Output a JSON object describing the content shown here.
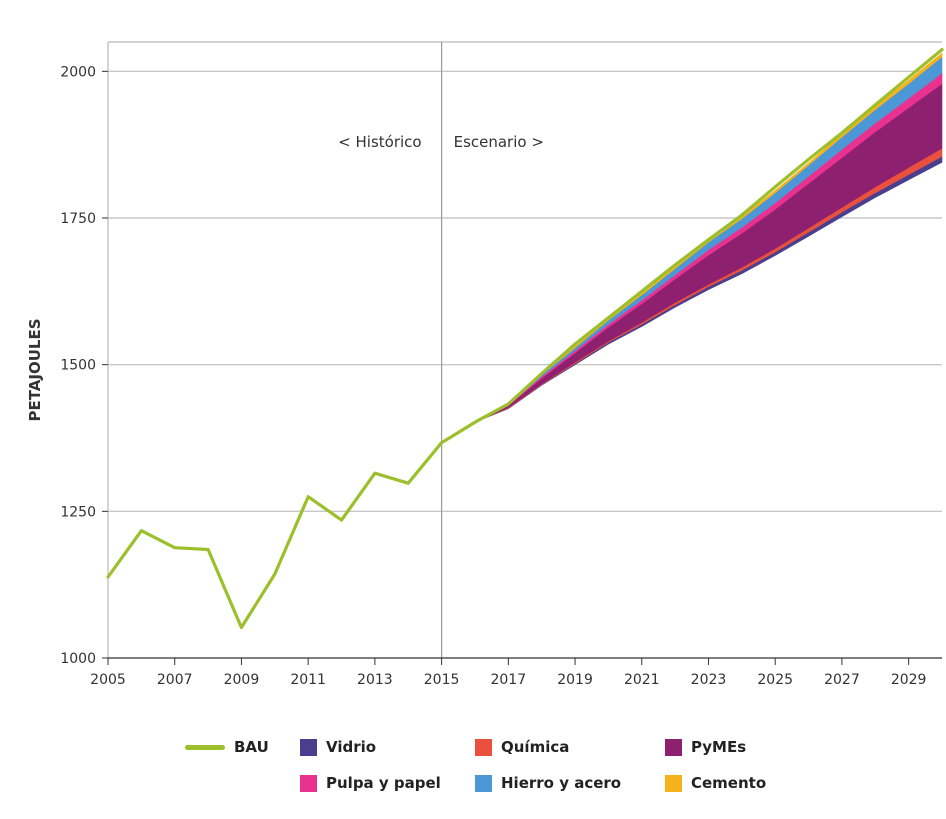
{
  "chart_data": {
    "type": "area",
    "ylabel": "PETAJOULES",
    "ylim": [
      1000,
      2050
    ],
    "xlim": [
      2005,
      2030
    ],
    "y_ticks": [
      "1000",
      "1250",
      "1500",
      "1750",
      "2000"
    ],
    "x_ticks": [
      "2005",
      "2007",
      "2009",
      "2011",
      "2013",
      "2015",
      "2017",
      "2019",
      "2021",
      "2023",
      "2025",
      "2027",
      "2029"
    ],
    "grid": true,
    "annotations": [
      "< Histórico",
      "Escenario >"
    ],
    "divider_year": 2015,
    "legend_position": "bottom",
    "bau": {
      "name": "BAU",
      "color": "#9cbf2b",
      "x": [
        2005,
        2006,
        2007,
        2008,
        2009,
        2010,
        2011,
        2012,
        2013,
        2014,
        2015,
        2016,
        2017,
        2018,
        2019,
        2020,
        2021,
        2022,
        2023,
        2024,
        2025,
        2026,
        2027,
        2028,
        2029,
        2030
      ],
      "values": [
        1138,
        1217,
        1188,
        1185,
        1052,
        1143,
        1275,
        1235,
        1315,
        1298,
        1367,
        1402,
        1433,
        1485,
        1535,
        1580,
        1625,
        1670,
        1713,
        1755,
        1803,
        1850,
        1895,
        1943,
        1990,
        2037
      ]
    },
    "scenario_x": [
      2016,
      2017,
      2018,
      2019,
      2020,
      2021,
      2022,
      2023,
      2024,
      2025,
      2026,
      2027,
      2028,
      2029,
      2030
    ],
    "base": [
      1402,
      1425,
      1465,
      1500,
      1535,
      1565,
      1598,
      1628,
      1655,
      1686,
      1719,
      1752,
      1785,
      1815,
      1845
    ],
    "series": [
      {
        "name": "Vidrio",
        "color": "#4a3f8f",
        "values": [
          0,
          1,
          1,
          2,
          3,
          4,
          4,
          5,
          6,
          6,
          7,
          8,
          8,
          9,
          10
        ]
      },
      {
        "name": "Química",
        "color": "#e9503e",
        "values": [
          0,
          1,
          1,
          2,
          2,
          3,
          4,
          4,
          5,
          6,
          7,
          8,
          10,
          12,
          14
        ]
      },
      {
        "name": "PyMEs",
        "color": "#8e2070",
        "values": [
          0,
          3,
          10,
          16,
          24,
          32,
          40,
          50,
          58,
          67,
          76,
          85,
          94,
          102,
          110
        ]
      },
      {
        "name": "Pulpa y papel",
        "color": "#e9318f",
        "values": [
          0,
          1,
          3,
          4,
          5,
          6,
          7,
          9,
          10,
          11,
          12,
          14,
          15,
          16,
          18
        ]
      },
      {
        "name": "Hierro y acero",
        "color": "#4c98d6",
        "values": [
          0,
          1,
          3,
          5,
          7,
          9,
          11,
          13,
          15,
          17,
          19,
          21,
          23,
          25,
          28
        ]
      },
      {
        "name": "Cemento",
        "color": "#f5b21a",
        "values": [
          0,
          1,
          1,
          2,
          2,
          3,
          3,
          3,
          4,
          4,
          4,
          5,
          5,
          6,
          6
        ]
      }
    ]
  },
  "legend": {
    "items": [
      {
        "label": "BAU",
        "color": "#9cbf2b",
        "kind": "line"
      },
      {
        "label": "Vidrio",
        "color": "#4a3f8f",
        "kind": "box"
      },
      {
        "label": "Química",
        "color": "#e9503e",
        "kind": "box"
      },
      {
        "label": "PyMEs",
        "color": "#8e2070",
        "kind": "box"
      },
      {
        "label": "Pulpa y papel",
        "color": "#e9318f",
        "kind": "box"
      },
      {
        "label": "Hierro y acero",
        "color": "#4c98d6",
        "kind": "box"
      },
      {
        "label": "Cemento",
        "color": "#f5b21a",
        "kind": "box"
      }
    ]
  }
}
